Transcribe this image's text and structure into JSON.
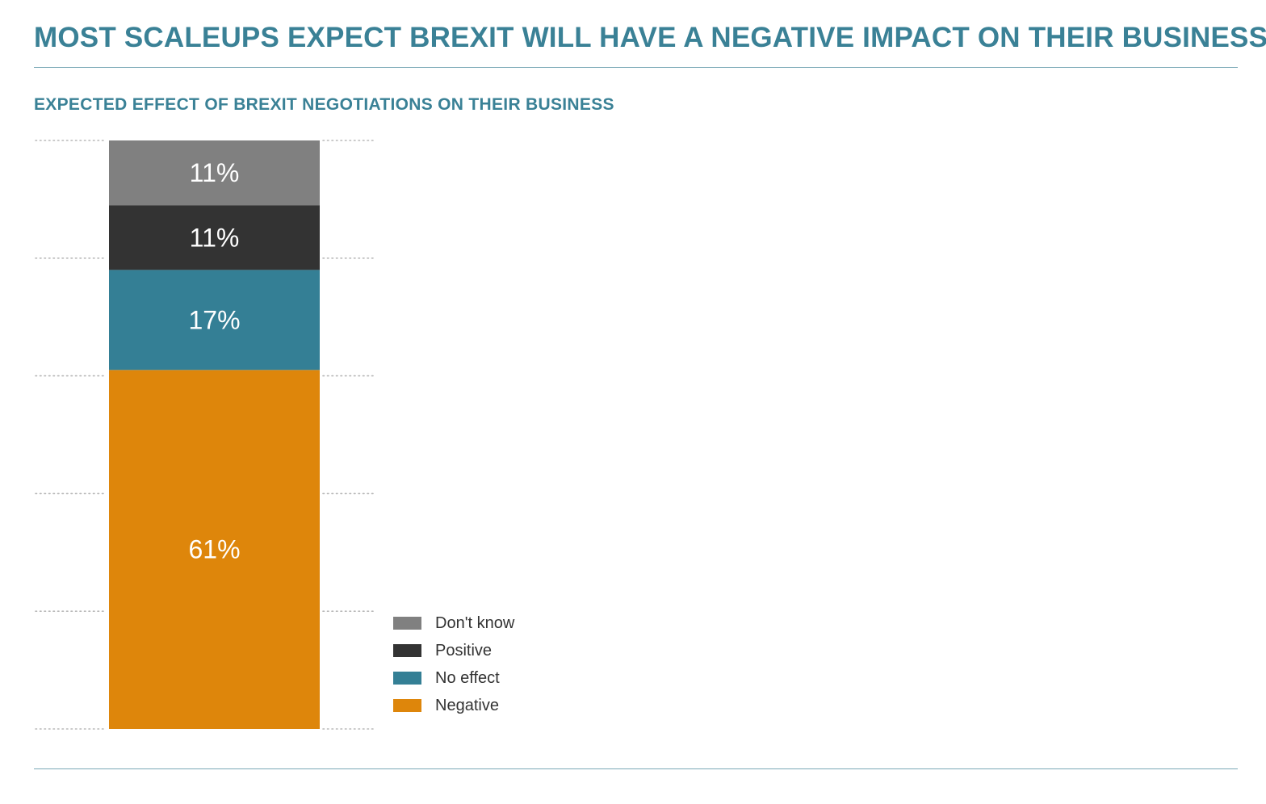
{
  "title": "MOST SCALEUPS EXPECT BREXIT WILL HAVE A NEGATIVE IMPACT ON THEIR BUSINESS",
  "subtitle": "EXPECTED EFFECT OF BREXIT NEGOTIATIONS ON THEIR BUSINESS",
  "colors": {
    "accent": "#3a8196",
    "rule": "#7aa9b6",
    "gridline": "#b8b8b8"
  },
  "chart_data": {
    "type": "bar",
    "stacked": true,
    "orientation": "vertical",
    "categories": [
      ""
    ],
    "series": [
      {
        "name": "Negative",
        "values": [
          61
        ],
        "label": "61%",
        "color": "#de860b"
      },
      {
        "name": "No effect",
        "values": [
          17
        ],
        "label": "17%",
        "color": "#347f95"
      },
      {
        "name": "Positive",
        "values": [
          11
        ],
        "label": "11%",
        "color": "#333333"
      },
      {
        "name": "Don't know",
        "values": [
          11
        ],
        "label": "11%",
        "color": "#808080"
      }
    ],
    "legend": {
      "position": "bottom-right",
      "entries": [
        {
          "label": "Don't know",
          "color": "#808080"
        },
        {
          "label": "Positive",
          "color": "#333333"
        },
        {
          "label": "No effect",
          "color": "#347f95"
        },
        {
          "label": "Negative",
          "color": "#de860b"
        }
      ]
    },
    "ylim": [
      0,
      100
    ],
    "gridlines": [
      0,
      20,
      40,
      60,
      80,
      100
    ],
    "grid": true,
    "grid_style": "dotted",
    "axes_visible": false
  }
}
